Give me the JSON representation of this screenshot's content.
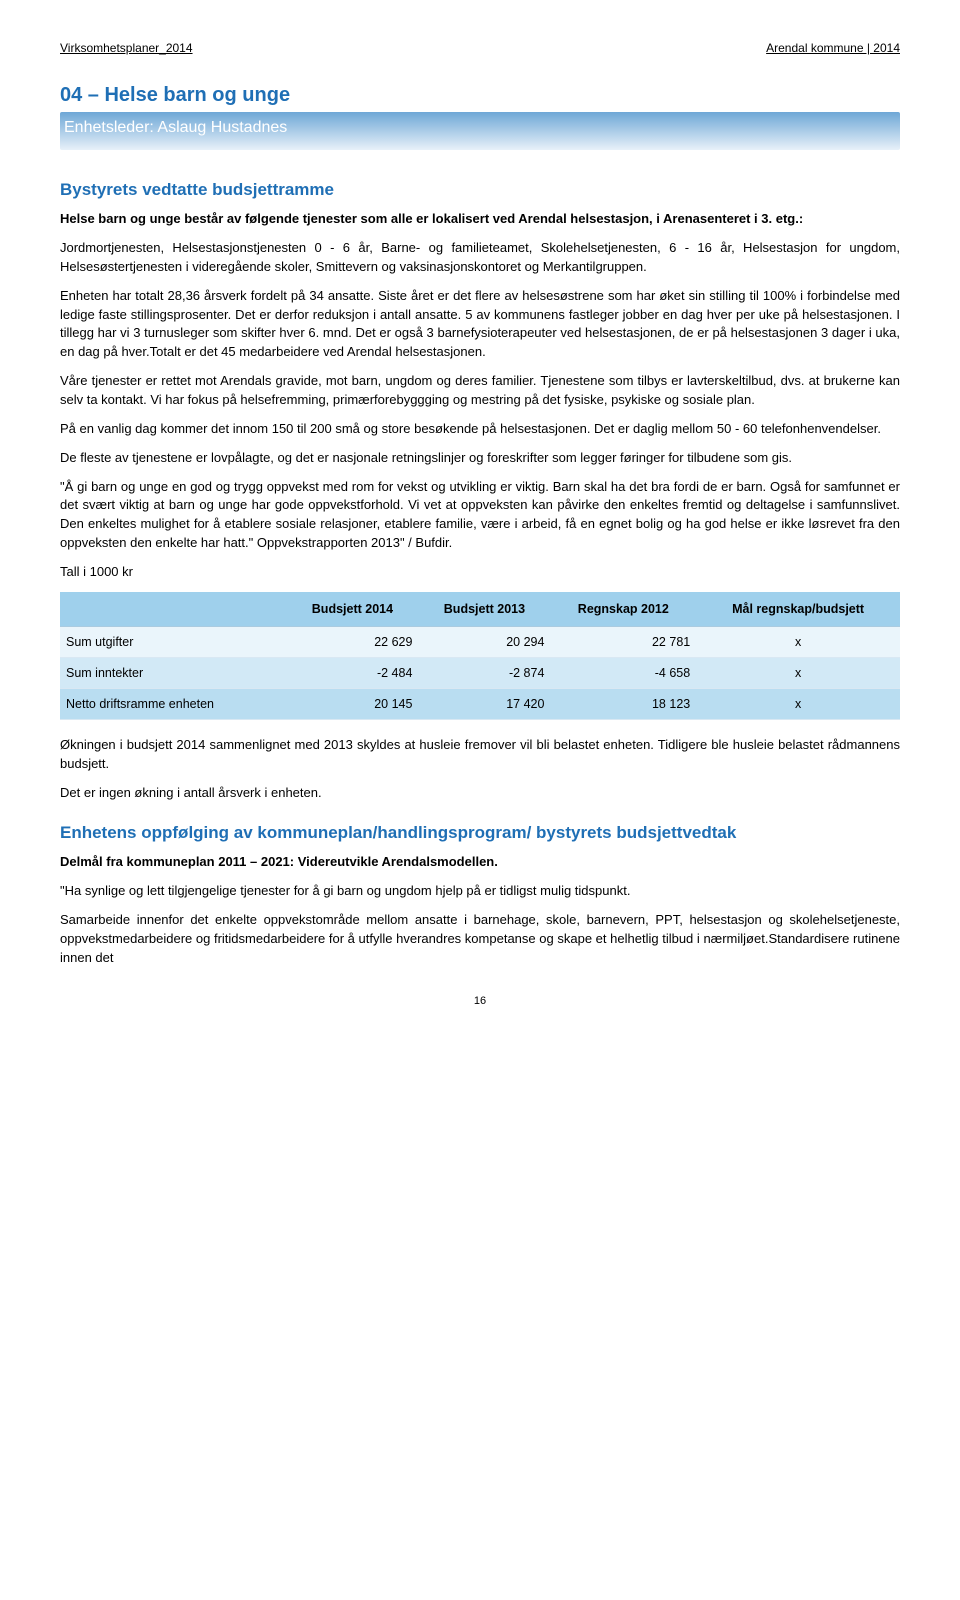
{
  "header": {
    "left": "Virksomhetsplaner_2014",
    "right": "Arendal kommune | 2014"
  },
  "title": "04 – Helse barn og unge",
  "subtitle": "Enhetsleder: Aslaug Hustadnes",
  "h2_a": "Bystyrets vedtatte budsjettramme",
  "p1": "Helse barn og unge består av følgende tjenester som alle er lokalisert ved Arendal helsestasjon, i Arenasenteret i 3. etg.:",
  "p2": "Jordmortjenesten, Helsestasjonstjenesten 0 - 6 år, Barne- og familieteamet, Skolehelsetjenesten, 6 - 16 år, Helsestasjon for ungdom, Helsesøstertjenesten i videregående skoler, Smittevern og vaksinasjonskontoret og Merkantilgruppen.",
  "p3": "Enheten har totalt 28,36 årsverk fordelt på 34 ansatte. Siste året er det flere av helsesøstrene som har øket sin stilling til 100% i forbindelse med ledige faste stillingsprosenter. Det er derfor reduksjon i antall ansatte. 5 av kommunens fastleger jobber en dag hver per uke på helsestasjonen. I tillegg har vi 3 turnusleger som skifter hver 6. mnd. Det er også 3 barnefysioterapeuter ved helsestasjonen, de er på helsestasjonen 3 dager i uka, en dag på hver.Totalt er det 45 medarbeidere ved Arendal helsestasjonen.",
  "p4": "Våre tjenester er rettet mot Arendals gravide, mot barn, ungdom og deres familier. Tjenestene som tilbys er lavterskeltilbud, dvs. at brukerne kan selv ta kontakt. Vi har fokus på helsefremming, primærforebyggging og mestring på det fysiske, psykiske og sosiale plan.",
  "p5": "På en vanlig dag kommer det innom 150 til 200 små og store besøkende på helsestasjonen. Det er daglig mellom 50 - 60 telefonhenvendelser.",
  "p6": "De fleste av tjenestene er lovpålagte, og det er nasjonale retningslinjer og foreskrifter som legger føringer for tilbudene som gis.",
  "p7": "\"Å gi barn og unge en god og trygg oppvekst med rom for vekst og utvikling er viktig. Barn skal ha det bra fordi de er barn. Også for samfunnet er det svært viktig at barn og unge har gode oppvekstforhold. Vi vet at oppveksten kan påvirke den enkeltes fremtid og deltagelse i samfunnslivet. Den enkeltes mulighet for å etablere sosiale relasjoner, etablere familie, være i arbeid, få en egnet bolig og ha god helse er ikke løsrevet fra den oppveksten den enkelte har hatt.\" Oppvekstrapporten 2013\" / Bufdir.",
  "table_intro": "Tall i 1000 kr",
  "table": {
    "columns": [
      "",
      "Budsjett 2014",
      "Budsjett 2013",
      "Regnskap 2012",
      "Mål regnskap/budsjett"
    ],
    "rows": [
      {
        "label": "Sum utgifter",
        "c1": "22 629",
        "c2": "20 294",
        "c3": "22 781",
        "c4": "x",
        "cls": "r0"
      },
      {
        "label": "Sum inntekter",
        "c1": "-2 484",
        "c2": "-2 874",
        "c3": "-4 658",
        "c4": "x",
        "cls": "r1"
      },
      {
        "label": "Netto driftsramme enheten",
        "c1": "20 145",
        "c2": "17 420",
        "c3": "18 123",
        "c4": "x",
        "cls": "r2"
      }
    ],
    "header_bg": "#9fd0ec",
    "row_bgs": [
      "#eaf5fb",
      "#d2e9f6",
      "#b9ddf1"
    ]
  },
  "p8": "Økningen i budsjett 2014 sammenlignet med 2013 skyldes at husleie fremover vil bli belastet enheten. Tidligere ble husleie belastet rådmannens budsjett.",
  "p9": "Det er ingen økning i antall årsverk i enheten.",
  "h2_b": "Enhetens oppfølging av kommuneplan/handlingsprogram/ bystyrets budsjettvedtak",
  "p10": "Delmål fra kommuneplan 2011 – 2021: Videreutvikle Arendalsmodellen.",
  "p11": "\"Ha synlige og lett tilgjengelige tjenester for å gi barn og ungdom hjelp på er tidligst mulig tidspunkt.",
  "p12": "Samarbeide innenfor det enkelte oppvekstområde mellom ansatte i barnehage, skole, barnevern, PPT, helsestasjon og skolehelsetjeneste, oppvekstmedarbeidere og fritidsmedarbeidere for å utfylle hverandres kompetanse og skape et helhetlig tilbud i nærmiljøet.Standardisere rutinene innen det",
  "page_num": "16"
}
